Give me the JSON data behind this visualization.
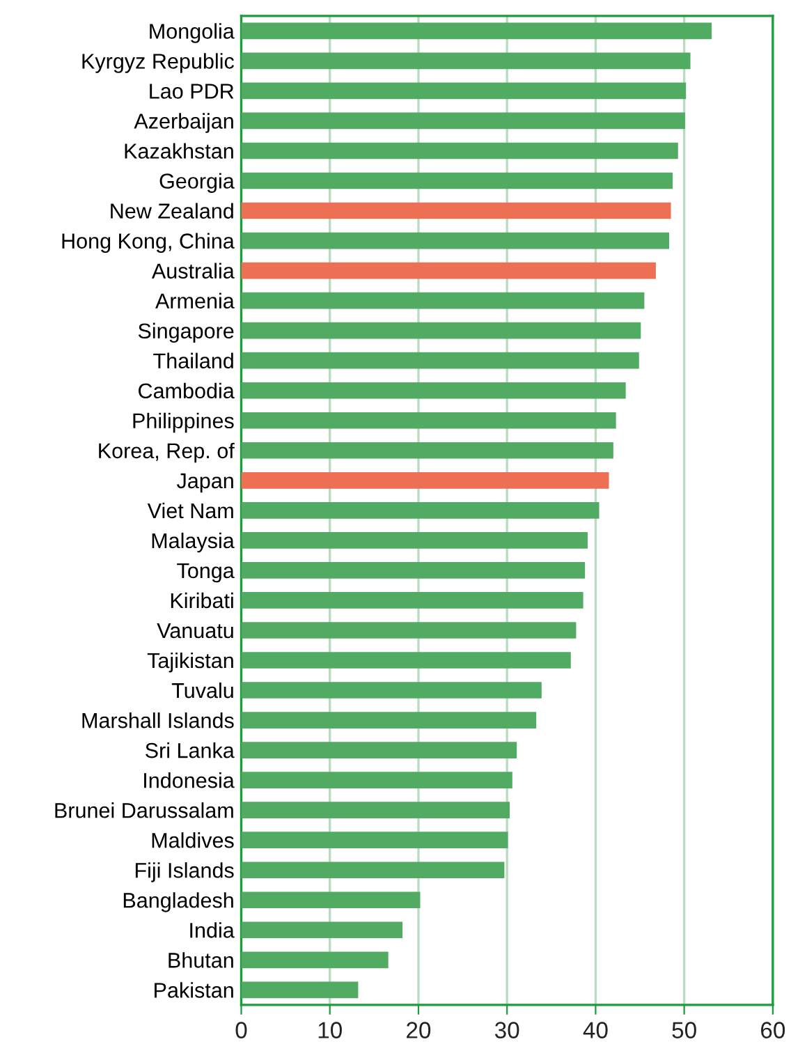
{
  "chart_data": {
    "type": "bar",
    "orientation": "horizontal",
    "categories": [
      "Mongolia",
      "Kyrgyz Republic",
      "Lao PDR",
      "Azerbaijan",
      "Kazakhstan",
      "Georgia",
      "New Zealand",
      "Hong Kong, China",
      "Australia",
      "Armenia",
      "Singapore",
      "Thailand",
      "Cambodia",
      "Philippines",
      "Korea, Rep. of",
      "Japan",
      "Viet Nam",
      "Malaysia",
      "Tonga",
      "Kiribati",
      "Vanuatu",
      "Tajikistan",
      "Tuvalu",
      "Marshall Islands",
      "Sri Lanka",
      "Indonesia",
      "Brunei Darussalam",
      "Maldives",
      "Fiji Islands",
      "Bangladesh",
      "India",
      "Bhutan",
      "Pakistan"
    ],
    "values": [
      53.1,
      50.7,
      50.2,
      50.1,
      49.3,
      48.7,
      48.5,
      48.3,
      46.8,
      45.5,
      45.1,
      44.9,
      43.4,
      42.3,
      42.0,
      41.5,
      40.4,
      39.1,
      38.8,
      38.6,
      37.8,
      37.2,
      33.9,
      33.3,
      31.1,
      30.6,
      30.3,
      30.1,
      29.7,
      20.2,
      18.2,
      16.6,
      13.2
    ],
    "colors": [
      "#52ab62",
      "#52ab62",
      "#52ab62",
      "#52ab62",
      "#52ab62",
      "#52ab62",
      "#ed7055",
      "#52ab62",
      "#ed7055",
      "#52ab62",
      "#52ab62",
      "#52ab62",
      "#52ab62",
      "#52ab62",
      "#52ab62",
      "#ed7055",
      "#52ab62",
      "#52ab62",
      "#52ab62",
      "#52ab62",
      "#52ab62",
      "#52ab62",
      "#52ab62",
      "#52ab62",
      "#52ab62",
      "#52ab62",
      "#52ab62",
      "#52ab62",
      "#52ab62",
      "#52ab62",
      "#52ab62",
      "#52ab62",
      "#52ab62"
    ],
    "xlim": [
      0,
      60
    ],
    "xticks": [
      0,
      10,
      20,
      30,
      40,
      50,
      60
    ],
    "grid": "x",
    "legend": false
  }
}
